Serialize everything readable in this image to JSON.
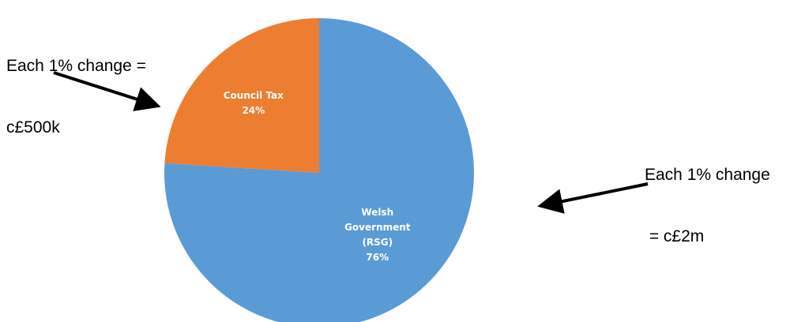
{
  "chart_data": {
    "type": "pie",
    "title": "",
    "slices": [
      {
        "label": "Welsh Government (RSG)",
        "value": 76,
        "display": "76%",
        "color": "#5b9bd5"
      },
      {
        "label": "Council Tax",
        "value": 24,
        "display": "24%",
        "color": "#ed7d31"
      }
    ],
    "legend": "none",
    "data_labels": "inside"
  },
  "annotations": {
    "left": {
      "lines": [
        "Each 1% change =",
        "c£500k"
      ]
    },
    "right": {
      "lines": [
        "Each 1% change",
        " = c£2m"
      ]
    }
  },
  "colors": {
    "arrow": "#000000",
    "label_text": "#ffffff"
  }
}
